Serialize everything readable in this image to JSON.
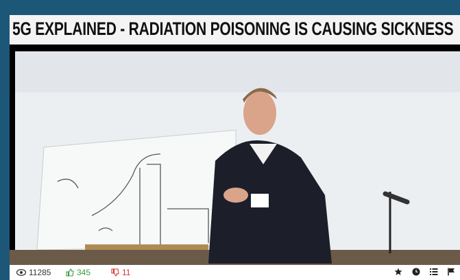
{
  "header": {
    "title": "5G EXPLAINED - RADIATION POISONING IS CAUSING SICKNESS"
  },
  "stats": {
    "views": 11285,
    "likes": 345,
    "dislikes": 11
  }
}
